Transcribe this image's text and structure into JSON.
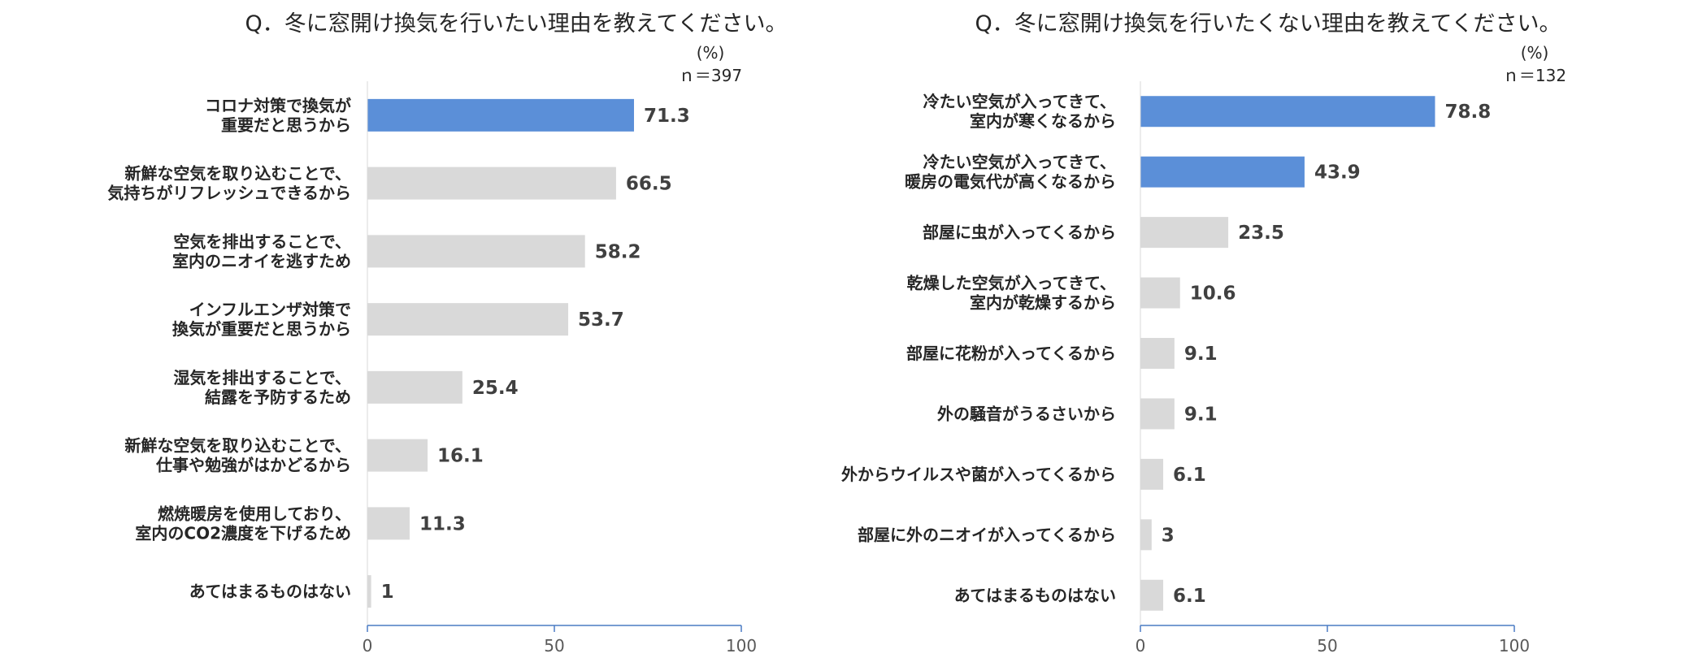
{
  "chart_data": [
    {
      "type": "bar",
      "orientation": "horizontal",
      "title": "Q．冬に窓開け換気を行いたい理由を教えてください。",
      "unit_label": "(%)",
      "n_label": "ｎ＝397",
      "categories": [
        [
          "コロナ対策で換気が",
          "重要だと思うから"
        ],
        [
          "新鮮な空気を取り込むことで、",
          "気持ちがリフレッシュできるから"
        ],
        [
          "空気を排出することで、",
          "室内のニオイを逃すため"
        ],
        [
          "インフルエンザ対策で",
          "換気が重要だと思うから"
        ],
        [
          "湿気を排出することで、",
          "結露を予防するため"
        ],
        [
          "新鮮な空気を取り込むことで、",
          "仕事や勉強がはかどるから"
        ],
        [
          "燃焼暖房を使用しており、",
          "室内のCO2濃度を下げるため"
        ],
        [
          "あてはまるものはない"
        ]
      ],
      "values": [
        71.3,
        66.5,
        58.2,
        53.7,
        25.4,
        16.1,
        11.3,
        1
      ],
      "value_labels": [
        "71.3",
        "66.5",
        "58.2",
        "53.7",
        "25.4",
        "16.1",
        "11.3",
        "1"
      ],
      "highlight": [
        true,
        false,
        false,
        false,
        false,
        false,
        false,
        false
      ],
      "xlim": [
        0,
        100
      ],
      "xticks": [
        "0",
        "50",
        "100"
      ],
      "colors": {
        "highlight": "#5B8FD8",
        "normal": "#D9D9D9",
        "axis": "#4A7BC4"
      }
    },
    {
      "type": "bar",
      "orientation": "horizontal",
      "title": "Q．冬に窓開け換気を行いたくない理由を教えてください。",
      "unit_label": "(%)",
      "n_label": "ｎ＝132",
      "categories": [
        [
          "冷たい空気が入ってきて、",
          "室内が寒くなるから"
        ],
        [
          "冷たい空気が入ってきて、",
          "暖房の電気代が高くなるから"
        ],
        [
          "部屋に虫が入ってくるから"
        ],
        [
          "乾燥した空気が入ってきて、",
          "室内が乾燥するから"
        ],
        [
          "部屋に花粉が入ってくるから"
        ],
        [
          "外の騒音がうるさいから"
        ],
        [
          "外からウイルスや菌が入ってくるから"
        ],
        [
          "部屋に外のニオイが入ってくるから"
        ],
        [
          "あてはまるものはない"
        ]
      ],
      "values": [
        78.8,
        43.9,
        23.5,
        10.6,
        9.1,
        9.1,
        6.1,
        3,
        6.1
      ],
      "value_labels": [
        "78.8",
        "43.9",
        "23.5",
        "10.6",
        "9.1",
        "9.1",
        "6.1",
        "3",
        "6.1"
      ],
      "highlight": [
        true,
        true,
        false,
        false,
        false,
        false,
        false,
        false,
        false
      ],
      "xlim": [
        0,
        100
      ],
      "xticks": [
        "0",
        "50",
        "100"
      ],
      "colors": {
        "highlight": "#5B8FD8",
        "normal": "#D9D9D9",
        "axis": "#4A7BC4"
      }
    }
  ]
}
